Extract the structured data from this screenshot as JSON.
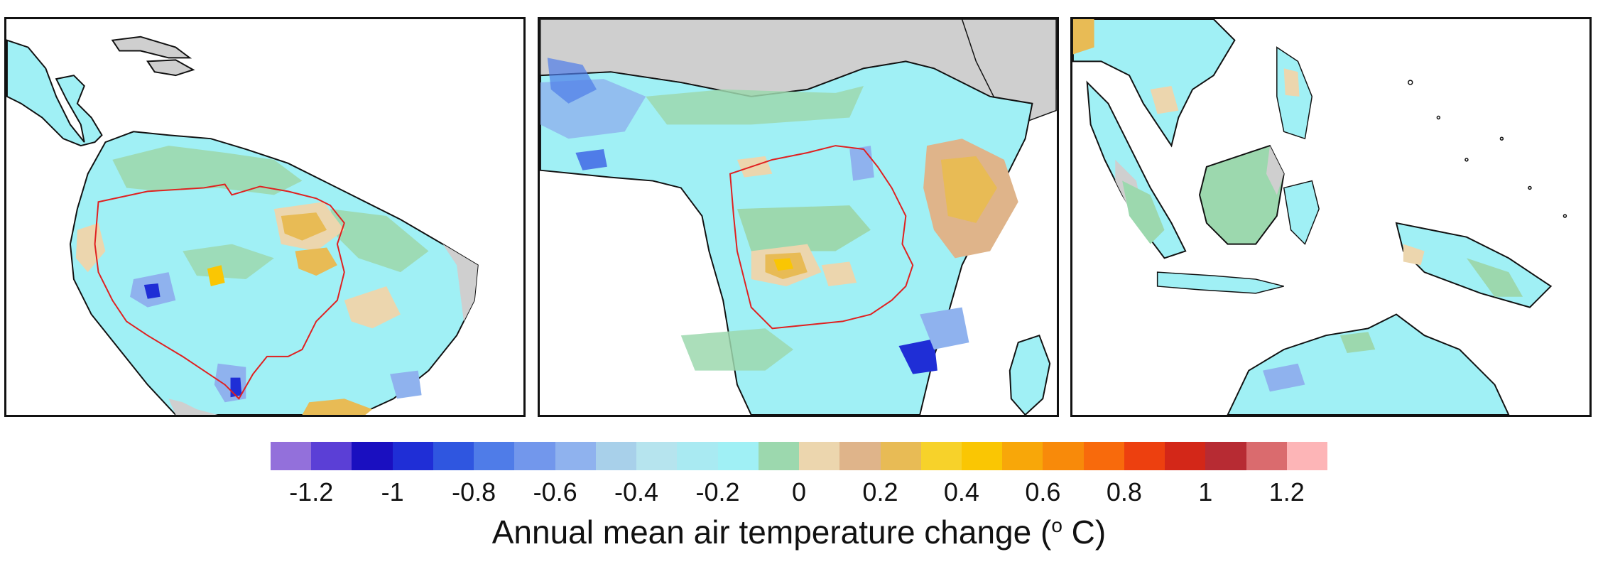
{
  "colorbar": {
    "title_main": "Annual mean air temperature change (",
    "title_degree": "o",
    "title_unit": " C)",
    "colors": [
      "#9370db",
      "#5b3fd6",
      "#1a0fc0",
      "#1f2ed6",
      "#2f56e0",
      "#4f7ce8",
      "#7297ec",
      "#8fb2ee",
      "#a8d0ea",
      "#b6e4ee",
      "#a9eaf2",
      "#a0f0f5",
      "#9cd8ae",
      "#ecd6ae",
      "#dfb48a",
      "#e8bb55",
      "#f7d22a",
      "#fac603",
      "#f8a709",
      "#f88a0a",
      "#f86a0c",
      "#ed400f",
      "#d32718",
      "#b72b33",
      "#da6b6e",
      "#fdb5b7"
    ],
    "tick_labels": [
      "-1.2",
      "-1",
      "-0.8",
      "-0.6",
      "-0.4",
      "-0.2",
      "0",
      "0.2",
      "0.4",
      "0.6",
      "0.8",
      "1",
      "1.2"
    ]
  },
  "map_colors": {
    "ocean": "#ffffff",
    "land_masked": "#cfcfcf",
    "base_anomaly": "#a0f0f5",
    "light_cyan": "#b6e4ee",
    "light_blue": "#8fb2ee",
    "mid_blue": "#4f7ce8",
    "dark_blue": "#1f2ed6",
    "green": "#9cd8ae",
    "tan": "#ecd6ae",
    "brown_tan": "#dfb48a",
    "orange_yellow": "#e8bb55",
    "yellow": "#fac603",
    "coastline": "#111111",
    "basin_boundary": "#e02020"
  },
  "panels": [
    {
      "region": "South America"
    },
    {
      "region": "Africa"
    },
    {
      "region": "Maritime Southeast Asia"
    }
  ]
}
